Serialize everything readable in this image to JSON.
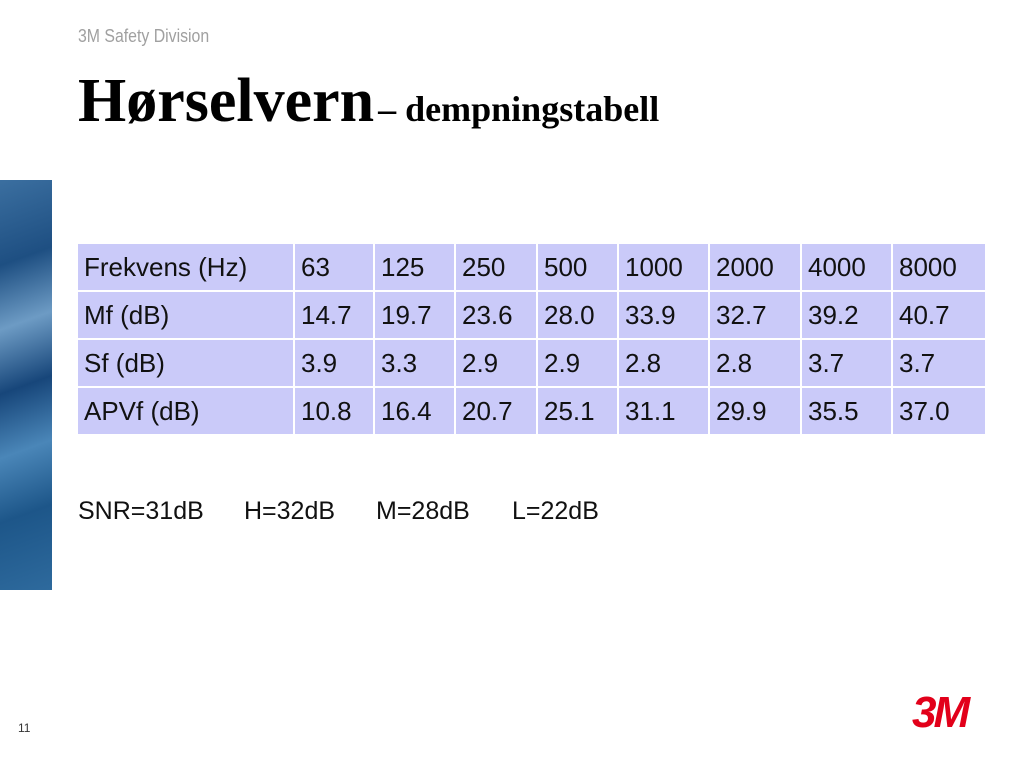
{
  "header": {
    "division": "3M Safety Division",
    "title": "Hørselvern",
    "subtitle": "– dempningstabell"
  },
  "table": {
    "rows": [
      [
        "Frekvens (Hz)",
        "63",
        "125",
        "250",
        "500",
        "1000",
        "2000",
        "4000",
        "8000"
      ],
      [
        "Mf (dB)",
        "14.7",
        "19.7",
        "23.6",
        "28.0",
        "33.9",
        "32.7",
        "39.2",
        "40.7"
      ],
      [
        "Sf (dB)",
        "3.9",
        "3.3",
        "2.9",
        "2.9",
        "2.8",
        "2.8",
        "3.7",
        "3.7"
      ],
      [
        "APVf (dB)",
        "10.8",
        "16.4",
        "20.7",
        "25.1",
        "31.1",
        "29.9",
        "35.5",
        "37.0"
      ]
    ]
  },
  "ratings": [
    "SNR=31dB",
    "H=32dB",
    "M=28dB",
    "L=22dB"
  ],
  "footer": {
    "page_number": "11",
    "logo": "3M"
  }
}
